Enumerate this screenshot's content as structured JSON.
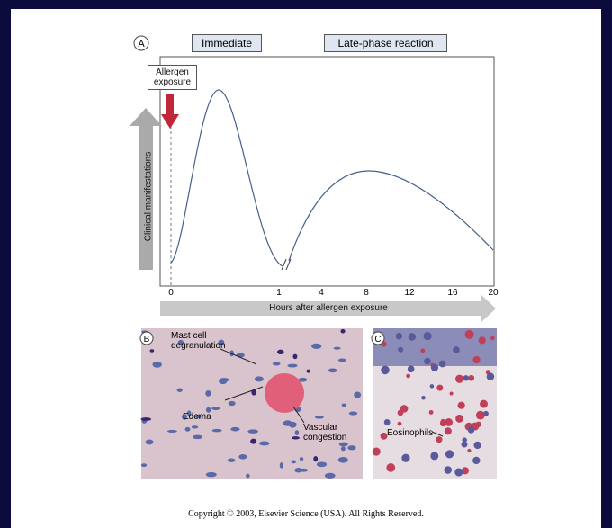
{
  "panel_a": {
    "label": "A",
    "phases": [
      "Immediate",
      "Late-phase reaction"
    ],
    "exposure_label": "Allergen exposure",
    "y_axis_label": "Clinical manifestations",
    "x_ticks": [
      "0",
      "1",
      "4",
      "8",
      "12",
      "16",
      "20"
    ],
    "x_axis_label": "Hours after allergen exposure"
  },
  "panel_b": {
    "label": "B",
    "annotations": [
      "Mast cell degranulation",
      "Edema",
      "Vascular congestion"
    ]
  },
  "panel_c": {
    "label": "C",
    "annotations": [
      "Eosinophils"
    ]
  },
  "copyright": "Copyright © 2003, Elsevier Science (USA). All Rights Reserved."
}
